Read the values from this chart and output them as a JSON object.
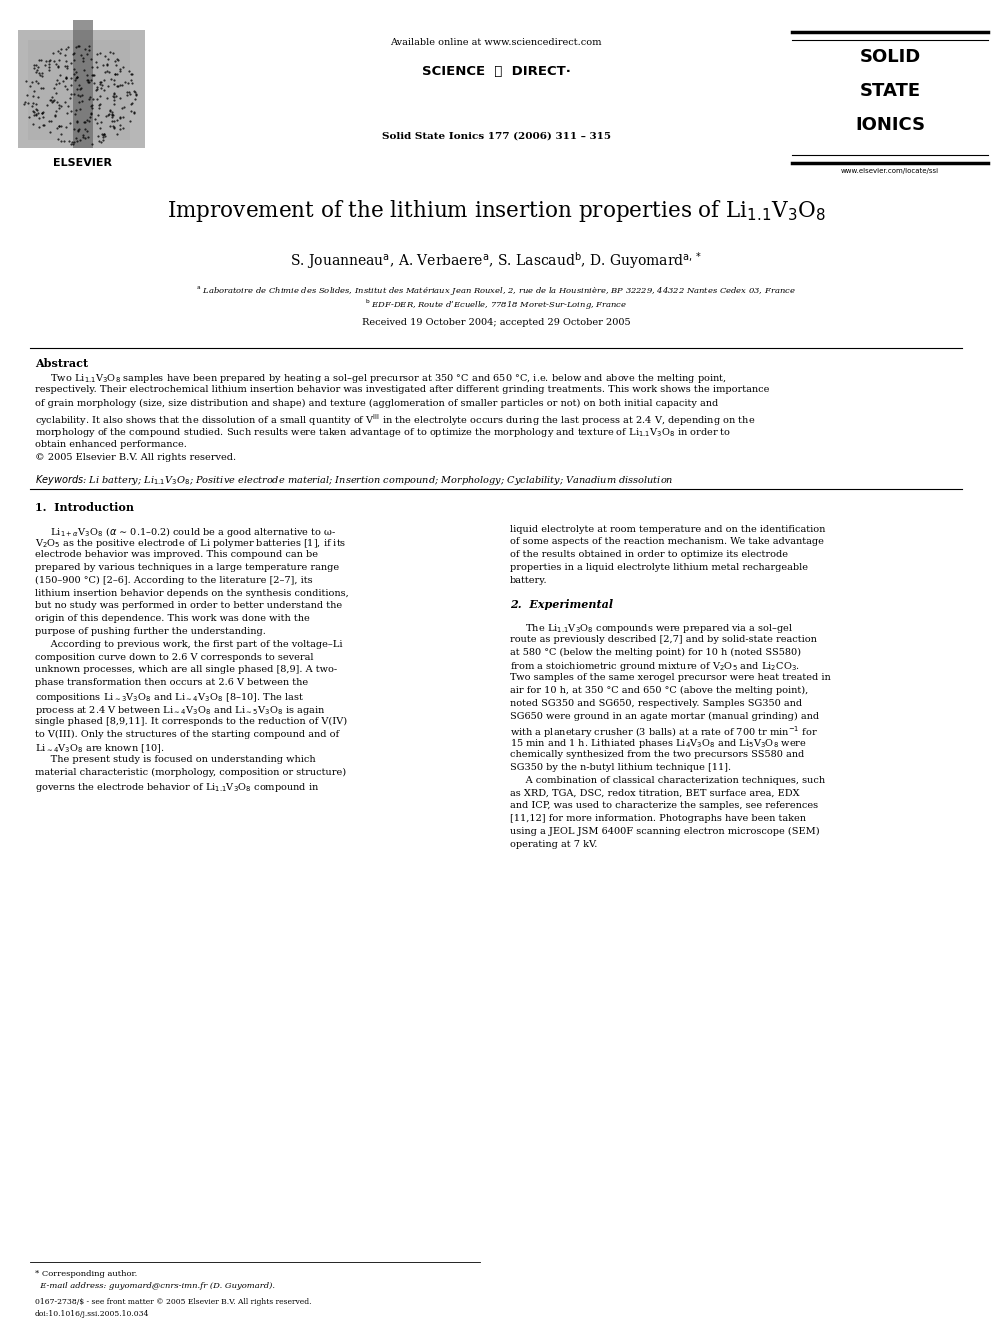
{
  "bg_color": "#ffffff",
  "page_width": 9.92,
  "page_height": 13.23,
  "header_available": "Available online at www.sciencedirect.com",
  "header_sd": "SCIENCE  ⓐ  DIRECT·",
  "header_journal": "Solid State Ionics 177 (2006) 311 – 315",
  "ssi_line1": "SOLID",
  "ssi_line2": "STATE",
  "ssi_line3": "IONICS",
  "ssi_url": "www.elsevier.com/locate/ssi",
  "elsevier": "ELSEVIER",
  "title_full": "Improvement of the lithium insertion properties of Li$_{1.1}$V$_{3}$O$_{8}$",
  "authors_full": "S. Jouanneau$^{\\rm a}$, A. Verbaere$^{\\rm a}$, S. Lascaud$^{\\rm b}$, D. Guyomard$^{\\rm a,*}$",
  "affil_a": "$^{\\rm a}$ Laboratoire de Chimie des Solides, Institut des Matériaux Jean Rouxel, 2, rue de la Housinière, BP 32229, 44322 Nantes Cedex 03, France",
  "affil_b": "$^{\\rm b}$ EDF-DER, Route d’Ecuelle, 77818 Moret-Sur-Loing, France",
  "received": "Received 19 October 2004; accepted 29 October 2005",
  "abstract_label": "Abstract",
  "abstract_lines": [
    "     Two Li$_{1.1}$V$_3$O$_8$ samples have been prepared by heating a sol–gel precursor at 350 °C and 650 °C, i.e. below and above the melting point,",
    "respectively. Their electrochemical lithium insertion behavior was investigated after different grinding treatments. This work shows the importance",
    "of grain morphology (size, size distribution and shape) and texture (agglomeration of smaller particles or not) on both initial capacity and",
    "cyclability. It also shows that the dissolution of a small quantity of V$^{\\rm III}$ in the electrolyte occurs during the last process at 2.4 V, depending on the",
    "morphology of the compound studied. Such results were taken advantage of to optimize the morphology and texture of Li$_{1.1}$V$_3$O$_8$ in order to",
    "obtain enhanced performance.",
    "© 2005 Elsevier B.V. All rights reserved."
  ],
  "keywords_line": "Li battery; Li$_{1.1}$V$_3$O$_8$; Positive electrode material; Insertion compound; Morphology; Cyclability; Vanadium dissolution",
  "sec1_title": "1.  Introduction",
  "sec1_col1": [
    "     Li$_{1+\\alpha}$V$_3$O$_8$ ($\\alpha$ ∼ 0.1–0.2) could be a good alternative to ω-",
    "V$_2$O$_5$ as the positive electrode of Li polymer batteries [1], if its",
    "electrode behavior was improved. This compound can be",
    "prepared by various techniques in a large temperature range",
    "(150–900 °C) [2–6]. According to the literature [2–7], its",
    "lithium insertion behavior depends on the synthesis conditions,",
    "but no study was performed in order to better understand the",
    "origin of this dependence. This work was done with the",
    "purpose of pushing further the understanding.",
    "     According to previous work, the first part of the voltage–Li",
    "composition curve down to 2.6 V corresponds to several",
    "unknown processes, which are all single phased [8,9]. A two-",
    "phase transformation then occurs at 2.6 V between the",
    "compositions Li$_{\\sim3}$V$_3$O$_8$ and Li$_{\\sim4}$V$_3$O$_8$ [8–10]. The last",
    "process at 2.4 V between Li$_{\\sim4}$V$_3$O$_8$ and Li$_{\\sim5}$V$_3$O$_8$ is again",
    "single phased [8,9,11]. It corresponds to the reduction of V(IV)",
    "to V(III). Only the structures of the starting compound and of",
    "Li$_{\\sim4}$V$_3$O$_8$ are known [10].",
    "     The present study is focused on understanding which",
    "material characteristic (morphology, composition or structure)",
    "governs the electrode behavior of Li$_{1.1}$V$_3$O$_8$ compound in"
  ],
  "sec2_col2_pre": [
    "liquid electrolyte at room temperature and on the identification",
    "of some aspects of the reaction mechanism. We take advantage",
    "of the results obtained in order to optimize its electrode",
    "properties in a liquid electrolyte lithium metal rechargeable",
    "battery."
  ],
  "sec2_title": "2.  Experimental",
  "sec2_col2": [
    "     The Li$_{1.1}$V$_3$O$_8$ compounds were prepared via a sol–gel",
    "route as previously described [2,7] and by solid-state reaction",
    "at 580 °C (below the melting point) for 10 h (noted SS580)",
    "from a stoichiometric ground mixture of V$_2$O$_5$ and Li$_2$CO$_3$.",
    "Two samples of the same xerogel precursor were heat treated in",
    "air for 10 h, at 350 °C and 650 °C (above the melting point),",
    "noted SG350 and SG650, respectively. Samples SG350 and",
    "SG650 were ground in an agate mortar (manual grinding) and",
    "with a planetary crusher (3 balls) at a rate of 700 tr min$^{-1}$ for",
    "15 min and 1 h. Lithiated phases Li$_4$V$_3$O$_8$ and Li$_5$V$_3$O$_8$ were",
    "chemically synthesized from the two precursors SS580 and",
    "SG350 by the n-butyl lithium technique [11].",
    "     A combination of classical characterization techniques, such",
    "as XRD, TGA, DSC, redox titration, BET surface area, EDX",
    "and ICP, was used to characterize the samples, see references",
    "[11,12] for more information. Photographs have been taken",
    "using a JEOL JSM 6400F scanning electron microscope (SEM)",
    "operating at 7 kV."
  ],
  "footer_star": "* Corresponding author.",
  "footer_email": "  E-mail address: guyomard@cnrs-imn.fr (D. Guyomard).",
  "footer_issn": "0167-2738/$ - see front matter © 2005 Elsevier B.V. All rights reserved.",
  "footer_doi": "doi:10.1016/j.ssi.2005.10.034"
}
